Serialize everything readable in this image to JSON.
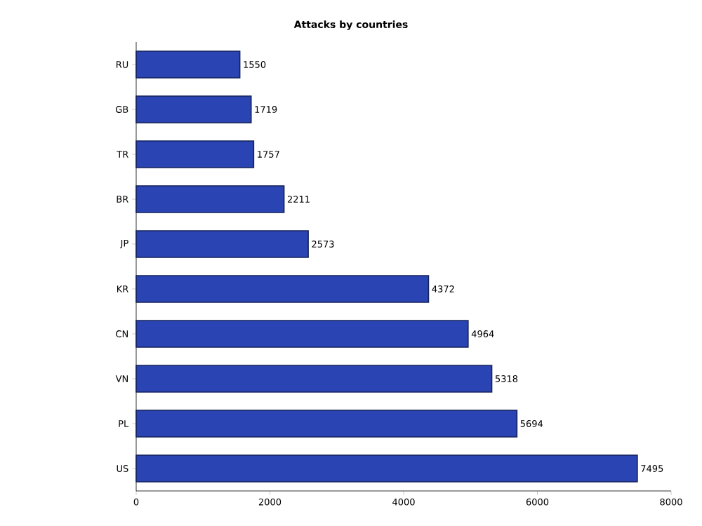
{
  "chart_data": {
    "type": "bar",
    "orientation": "horizontal",
    "title": "Attacks by countries",
    "categories": [
      "RU",
      "GB",
      "TR",
      "BR",
      "JP",
      "KR",
      "CN",
      "VN",
      "PL",
      "US"
    ],
    "values": [
      1550,
      1719,
      1757,
      2211,
      2573,
      4372,
      4964,
      5318,
      5694,
      7495
    ],
    "color": "#2a44b4",
    "data_labels": true,
    "xlim": [
      0,
      8000
    ],
    "xticks": [
      0,
      2000,
      4000,
      6000,
      8000
    ]
  }
}
